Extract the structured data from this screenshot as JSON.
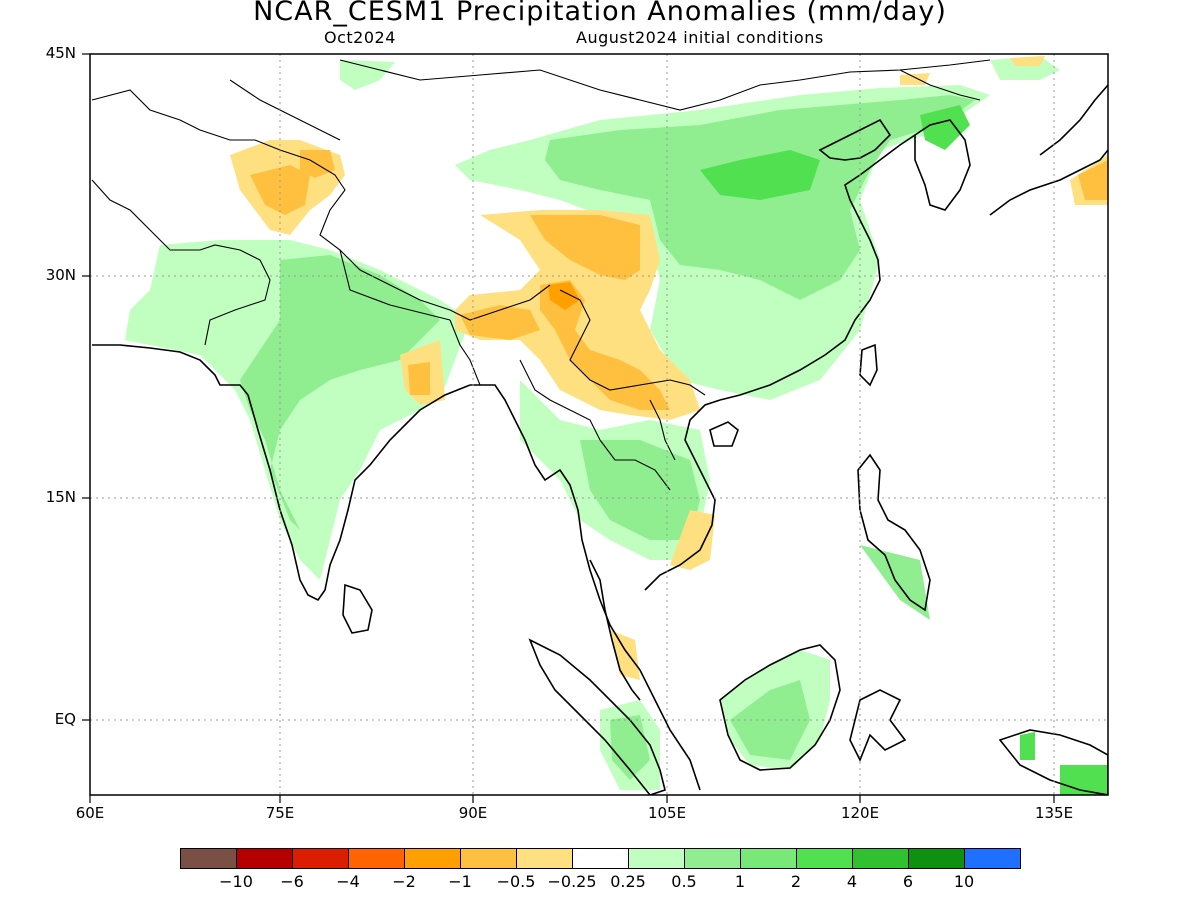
{
  "title": "NCAR_CESM1 Precipitation Anomalies (mm/day)",
  "subtitle_left": "Oct2024",
  "subtitle_right": "August2024 initial conditions",
  "axes": {
    "lat_ticks": [
      "45N",
      "30N",
      "15N",
      "EQ"
    ],
    "lon_ticks": [
      "60E",
      "75E",
      "90E",
      "105E",
      "120E",
      "135E"
    ],
    "lat_range": [
      -5,
      45
    ],
    "lon_range": [
      60,
      140
    ],
    "grid": "dotted"
  },
  "colorbar": {
    "colors": [
      "#7a5044",
      "#b40000",
      "#dc1e00",
      "#ff6400",
      "#ffa000",
      "#ffc040",
      "#ffe080",
      "#ffffff",
      "#c0ffc0",
      "#90ee90",
      "#78e878",
      "#50e050",
      "#30c030",
      "#109010",
      "#2070ff"
    ],
    "labels": [
      "−10",
      "−6",
      "−4",
      "−2",
      "−1",
      "−0.5",
      "−0.25",
      "0.25",
      "0.5",
      "1",
      "2",
      "4",
      "6",
      "10"
    ]
  },
  "palette": {
    "green_light": "#c0ffc0",
    "green_mid": "#90ee90",
    "green_dark": "#50e050",
    "orange_light": "#ffe080",
    "orange_mid": "#ffc040",
    "orange_dark": "#ffa000",
    "land_line": "#000000"
  }
}
